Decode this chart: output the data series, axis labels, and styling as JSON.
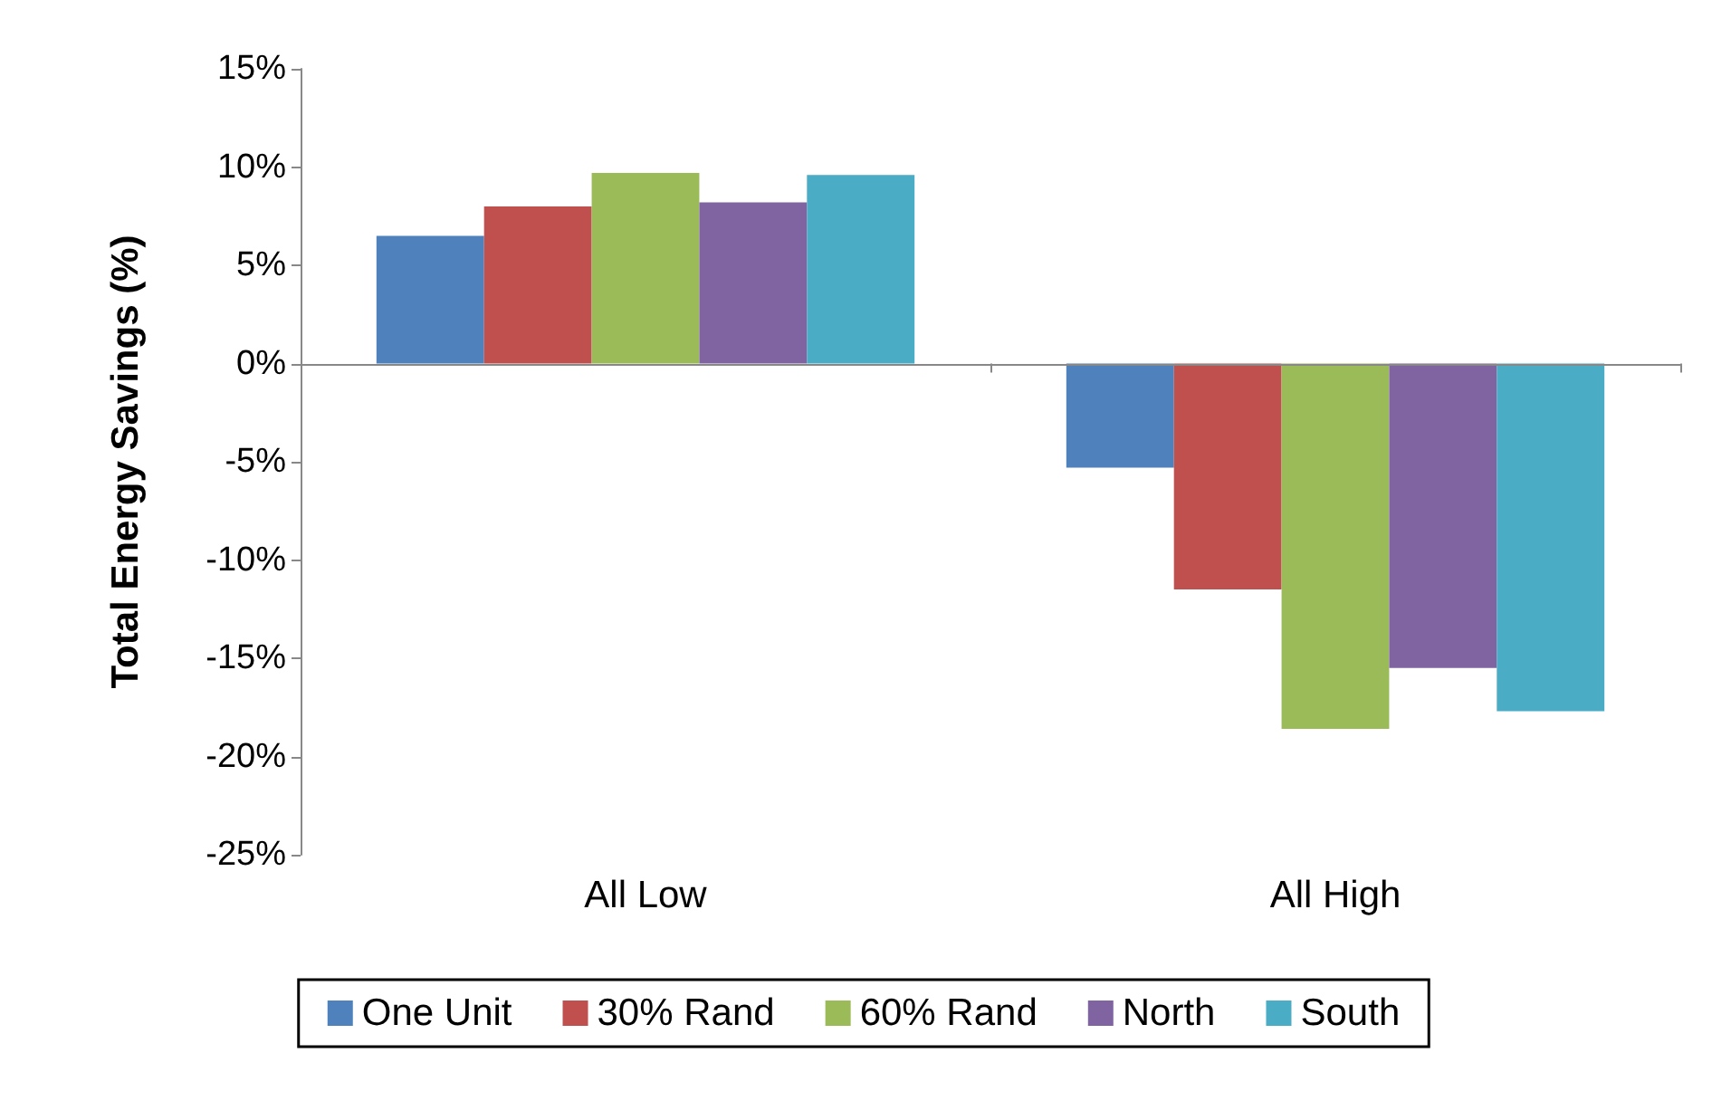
{
  "chart_data": {
    "type": "bar",
    "ylabel": "Total Energy Savings (%)",
    "categories": [
      "All Low",
      "All High"
    ],
    "series": [
      {
        "name": "One Unit",
        "color": "#4f81bd",
        "values": [
          6.5,
          -5.3
        ]
      },
      {
        "name": "30% Rand",
        "color": "#c0504d",
        "values": [
          8.0,
          -11.5
        ]
      },
      {
        "name": "60% Rand",
        "color": "#9bbb59",
        "values": [
          9.7,
          -18.6
        ]
      },
      {
        "name": "North",
        "color": "#8064a2",
        "values": [
          8.2,
          -15.5
        ]
      },
      {
        "name": "South",
        "color": "#4bacc6",
        "values": [
          9.6,
          -17.7
        ]
      }
    ],
    "ylim": [
      -25,
      15
    ],
    "yticks": [
      {
        "value": -25,
        "label": "-25%"
      },
      {
        "value": -20,
        "label": "-20%"
      },
      {
        "value": -15,
        "label": "-15%"
      },
      {
        "value": -10,
        "label": "-10%"
      },
      {
        "value": -5,
        "label": "-5%"
      },
      {
        "value": 0,
        "label": "0%"
      },
      {
        "value": 5,
        "label": "5%"
      },
      {
        "value": 10,
        "label": "10%"
      },
      {
        "value": 15,
        "label": "15%"
      }
    ],
    "ref_lines": [
      {
        "axis": "y",
        "value": 0,
        "color": "#888888"
      }
    ],
    "grid": false,
    "legend": "bottom"
  }
}
